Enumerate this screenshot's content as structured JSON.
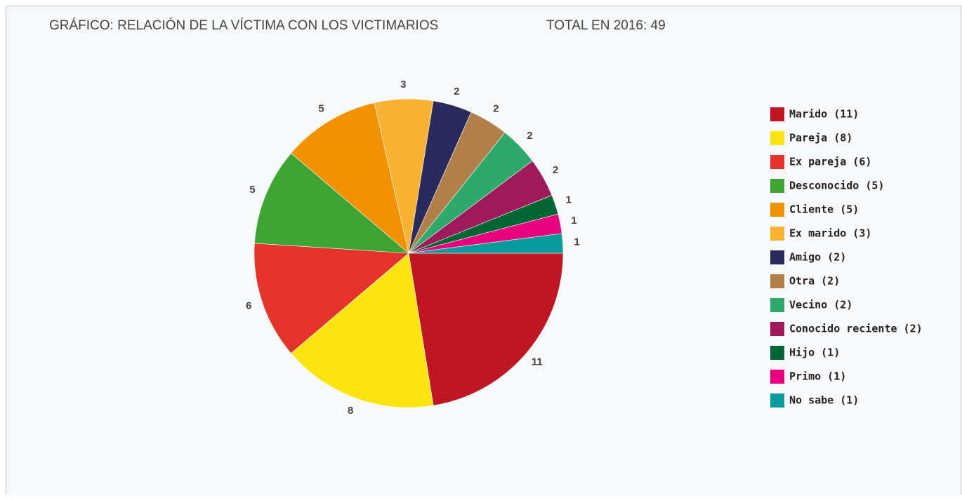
{
  "chart_data": {
    "type": "pie",
    "title": "GRÁFICO: RELACIÓN DE LA VÍCTIMA CON LOS VICTIMARIOS",
    "subtitle": "TOTAL EN 2016: 49",
    "categories": [
      "Marido (11)",
      "Pareja (8)",
      "Ex pareja (6)",
      "Desconocido (5)",
      "Cliente (5)",
      "Ex marido (3)",
      "Amigo (2)",
      "Otra (2)",
      "Vecino (2)",
      "Conocido reciente (2)",
      "Hijo (1)",
      "Primo (1)",
      "No sabe (1)"
    ],
    "values": [
      11,
      8,
      6,
      5,
      5,
      3,
      2,
      2,
      2,
      2,
      1,
      1,
      1
    ],
    "colors": [
      "#be1622",
      "#fbe40f",
      "#e3332a",
      "#3ea535",
      "#f39200",
      "#f9b233",
      "#2a2a5c",
      "#b07f4a",
      "#2ea86b",
      "#9e1a5a",
      "#006633",
      "#e6007e",
      "#079b9b"
    ],
    "legend": "right"
  }
}
